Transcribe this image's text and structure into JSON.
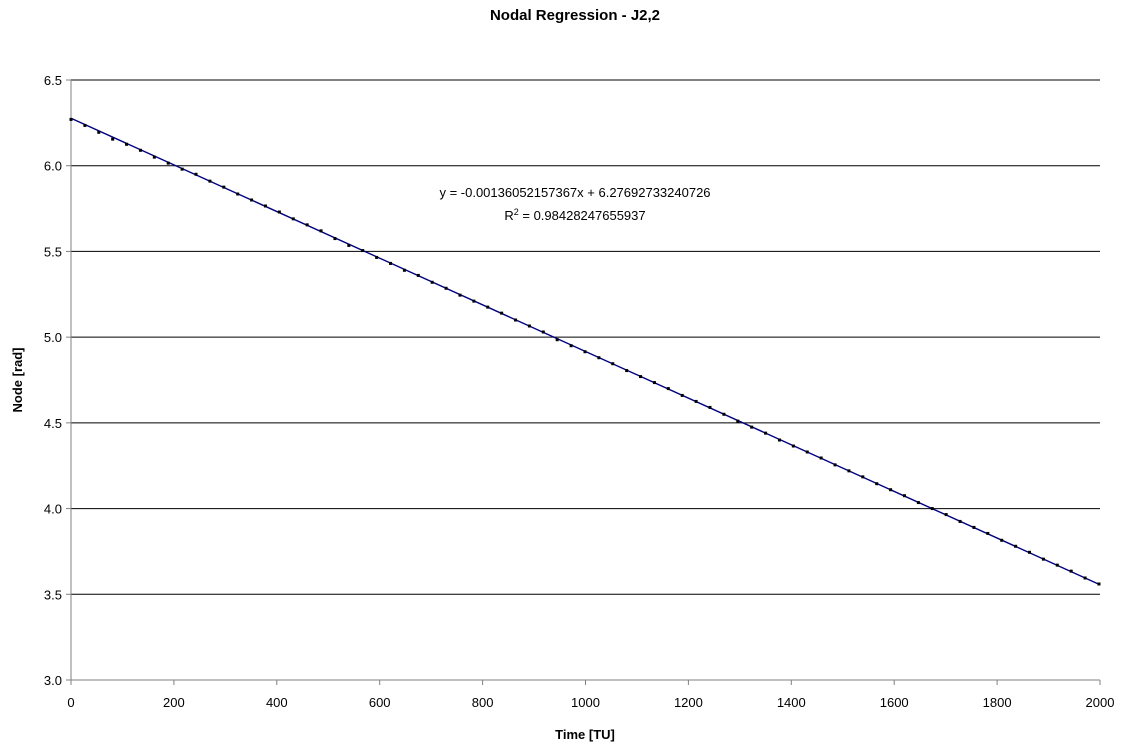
{
  "chart_data": {
    "type": "scatter",
    "title": "Nodal Regression - J2,2",
    "xlabel": "Time [TU]",
    "ylabel": "Node [rad]",
    "xlim": [
      0,
      2000
    ],
    "ylim": [
      3.0,
      6.5
    ],
    "x_ticks": [
      "0",
      "200",
      "400",
      "600",
      "800",
      "1000",
      "1200",
      "1400",
      "1600",
      "1800",
      "2000"
    ],
    "y_ticks": [
      "3.0",
      "3.5",
      "4.0",
      "4.5",
      "5.0",
      "5.5",
      "6.0",
      "6.5"
    ],
    "horizontal_gridlines": true,
    "series": [
      {
        "marker_color": "#000000",
        "x": [
          0,
          27,
          54,
          81,
          108,
          135,
          162,
          189,
          216,
          243,
          270,
          297,
          324,
          351,
          378,
          405,
          432,
          459,
          486,
          513,
          540,
          567,
          594,
          621,
          648,
          675,
          702,
          729,
          756,
          783,
          810,
          837,
          864,
          891,
          918,
          945,
          972,
          999,
          1026,
          1053,
          1080,
          1107,
          1134,
          1161,
          1188,
          1215,
          1242,
          1269,
          1296,
          1323,
          1350,
          1377,
          1404,
          1431,
          1458,
          1485,
          1512,
          1539,
          1566,
          1593,
          1620,
          1647,
          1674,
          1701,
          1728,
          1755,
          1782,
          1809,
          1836,
          1863,
          1890,
          1917,
          1944,
          1971,
          1998
        ],
        "y": [
          6.27,
          6.235,
          6.195,
          6.155,
          6.125,
          6.09,
          6.05,
          6.015,
          5.98,
          5.95,
          5.91,
          5.875,
          5.835,
          5.8,
          5.765,
          5.73,
          5.69,
          5.655,
          5.62,
          5.575,
          5.535,
          5.505,
          5.465,
          5.43,
          5.39,
          5.36,
          5.32,
          5.285,
          5.245,
          5.21,
          5.175,
          5.14,
          5.1,
          5.065,
          5.03,
          4.985,
          4.95,
          4.915,
          4.88,
          4.845,
          4.805,
          4.77,
          4.735,
          4.7,
          4.66,
          4.625,
          4.59,
          4.55,
          4.51,
          4.475,
          4.44,
          4.4,
          4.365,
          4.33,
          4.295,
          4.255,
          4.22,
          4.185,
          4.145,
          4.11,
          4.075,
          4.035,
          4.0,
          3.965,
          3.925,
          3.89,
          3.855,
          3.815,
          3.78,
          3.745,
          3.705,
          3.67,
          3.635,
          3.595,
          3.56
        ]
      }
    ],
    "trendline": {
      "type": "linear",
      "slope": -0.00136052157367,
      "intercept": 6.27692733240726,
      "color": "#000080"
    },
    "annotations": {
      "equation": "y = -0.00136052157367x + 6.27692733240726",
      "r2_prefix": "R",
      "r2_sup": "2",
      "r2_value": " = 0.98428247655937"
    },
    "colors": {
      "gridline": "#000000",
      "axis": "#808080",
      "background": "#ffffff"
    }
  }
}
